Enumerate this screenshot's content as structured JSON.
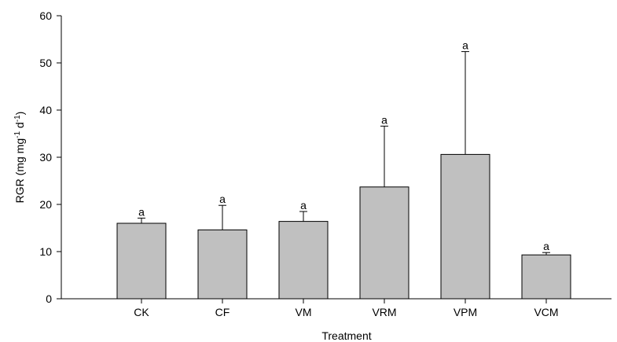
{
  "chart_data": {
    "type": "bar",
    "title": "",
    "xlabel": "Treatment",
    "ylabel": "RGR (mg mg",
    "ylabel_sup1": "-1",
    "ylabel_mid": " d",
    "ylabel_sup2": "-1",
    "ylabel_end": ")",
    "categories": [
      "CK",
      "CF",
      "VM",
      "VRM",
      "VPM",
      "VCM"
    ],
    "values": [
      16.0,
      14.6,
      16.4,
      23.7,
      30.6,
      9.3
    ],
    "error_upper": [
      1.1,
      5.2,
      2.1,
      12.9,
      21.8,
      0.5
    ],
    "significance": [
      "a",
      "a",
      "a",
      "a",
      "a",
      "a"
    ],
    "ylim": [
      0,
      60
    ],
    "yticks": [
      0,
      10,
      20,
      30,
      40,
      50,
      60
    ],
    "grid": false,
    "bar_color": "#c0c0c0",
    "edge_color": "#000000"
  }
}
